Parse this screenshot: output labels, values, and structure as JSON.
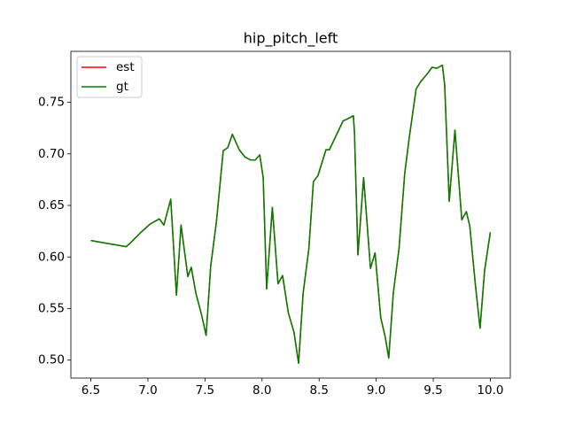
{
  "chart_data": {
    "type": "line",
    "title": "hip_pitch_left",
    "x": [
      6.5,
      6.81,
      6.85,
      6.93,
      7.02,
      7.1,
      7.14,
      7.2,
      7.25,
      7.29,
      7.35,
      7.38,
      7.42,
      7.47,
      7.51,
      7.55,
      7.6,
      7.66,
      7.7,
      7.74,
      7.8,
      7.85,
      7.9,
      7.94,
      7.98,
      8.01,
      8.04,
      8.09,
      8.14,
      8.18,
      8.23,
      8.28,
      8.32,
      8.36,
      8.41,
      8.45,
      8.49,
      8.56,
      8.59,
      8.65,
      8.71,
      8.75,
      8.8,
      8.81,
      8.84,
      8.89,
      8.95,
      8.99,
      9.04,
      9.08,
      9.11,
      9.15,
      9.2,
      9.25,
      9.29,
      9.35,
      9.39,
      9.45,
      9.49,
      9.53,
      9.58,
      9.6,
      9.64,
      9.69,
      9.75,
      9.79,
      9.82,
      9.87,
      9.91,
      9.95,
      10.0
    ],
    "series": [
      {
        "name": "est",
        "color": "#ff0000",
        "values": [
          0.616,
          0.61,
          0.614,
          0.623,
          0.632,
          0.637,
          0.631,
          0.656,
          0.563,
          0.631,
          0.581,
          0.59,
          0.565,
          0.544,
          0.524,
          0.591,
          0.634,
          0.703,
          0.706,
          0.719,
          0.704,
          0.697,
          0.694,
          0.694,
          0.699,
          0.677,
          0.569,
          0.648,
          0.574,
          0.582,
          0.546,
          0.527,
          0.497,
          0.565,
          0.608,
          0.673,
          0.679,
          0.704,
          0.704,
          0.718,
          0.732,
          0.734,
          0.737,
          0.72,
          0.602,
          0.677,
          0.589,
          0.604,
          0.541,
          0.522,
          0.502,
          0.565,
          0.608,
          0.681,
          0.716,
          0.763,
          0.77,
          0.778,
          0.784,
          0.783,
          0.786,
          0.767,
          0.654,
          0.723,
          0.636,
          0.644,
          0.63,
          0.572,
          0.531,
          0.587,
          0.624
        ]
      },
      {
        "name": "gt",
        "color": "#008000",
        "values": [
          0.616,
          0.61,
          0.614,
          0.623,
          0.632,
          0.637,
          0.631,
          0.656,
          0.563,
          0.631,
          0.581,
          0.59,
          0.565,
          0.544,
          0.524,
          0.591,
          0.634,
          0.703,
          0.706,
          0.719,
          0.704,
          0.697,
          0.694,
          0.694,
          0.699,
          0.677,
          0.569,
          0.648,
          0.574,
          0.582,
          0.546,
          0.527,
          0.497,
          0.565,
          0.608,
          0.673,
          0.679,
          0.704,
          0.704,
          0.718,
          0.732,
          0.734,
          0.737,
          0.72,
          0.602,
          0.677,
          0.589,
          0.604,
          0.541,
          0.522,
          0.502,
          0.565,
          0.608,
          0.681,
          0.716,
          0.763,
          0.77,
          0.778,
          0.784,
          0.783,
          0.786,
          0.767,
          0.654,
          0.723,
          0.636,
          0.644,
          0.63,
          0.572,
          0.531,
          0.587,
          0.624
        ]
      }
    ],
    "xlim": [
      6.325,
      10.175
    ],
    "xticks": [
      6.5,
      {
        "value": 7,
        "label": "7.0"
      },
      7.5,
      {
        "value": 8,
        "label": "8.0"
      },
      8.5,
      {
        "value": 9,
        "label": "9.0"
      },
      9.5,
      {
        "value": 10,
        "label": "10.0"
      }
    ],
    "ylim": [
      0.4826,
      0.7994
    ],
    "yticks": [
      {
        "value": 0.5,
        "label": "0.50"
      },
      0.55,
      {
        "value": 0.6,
        "label": "0.60"
      },
      0.65,
      {
        "value": 0.7,
        "label": "0.70"
      },
      0.75
    ],
    "legend": "upper left",
    "grid": false
  }
}
